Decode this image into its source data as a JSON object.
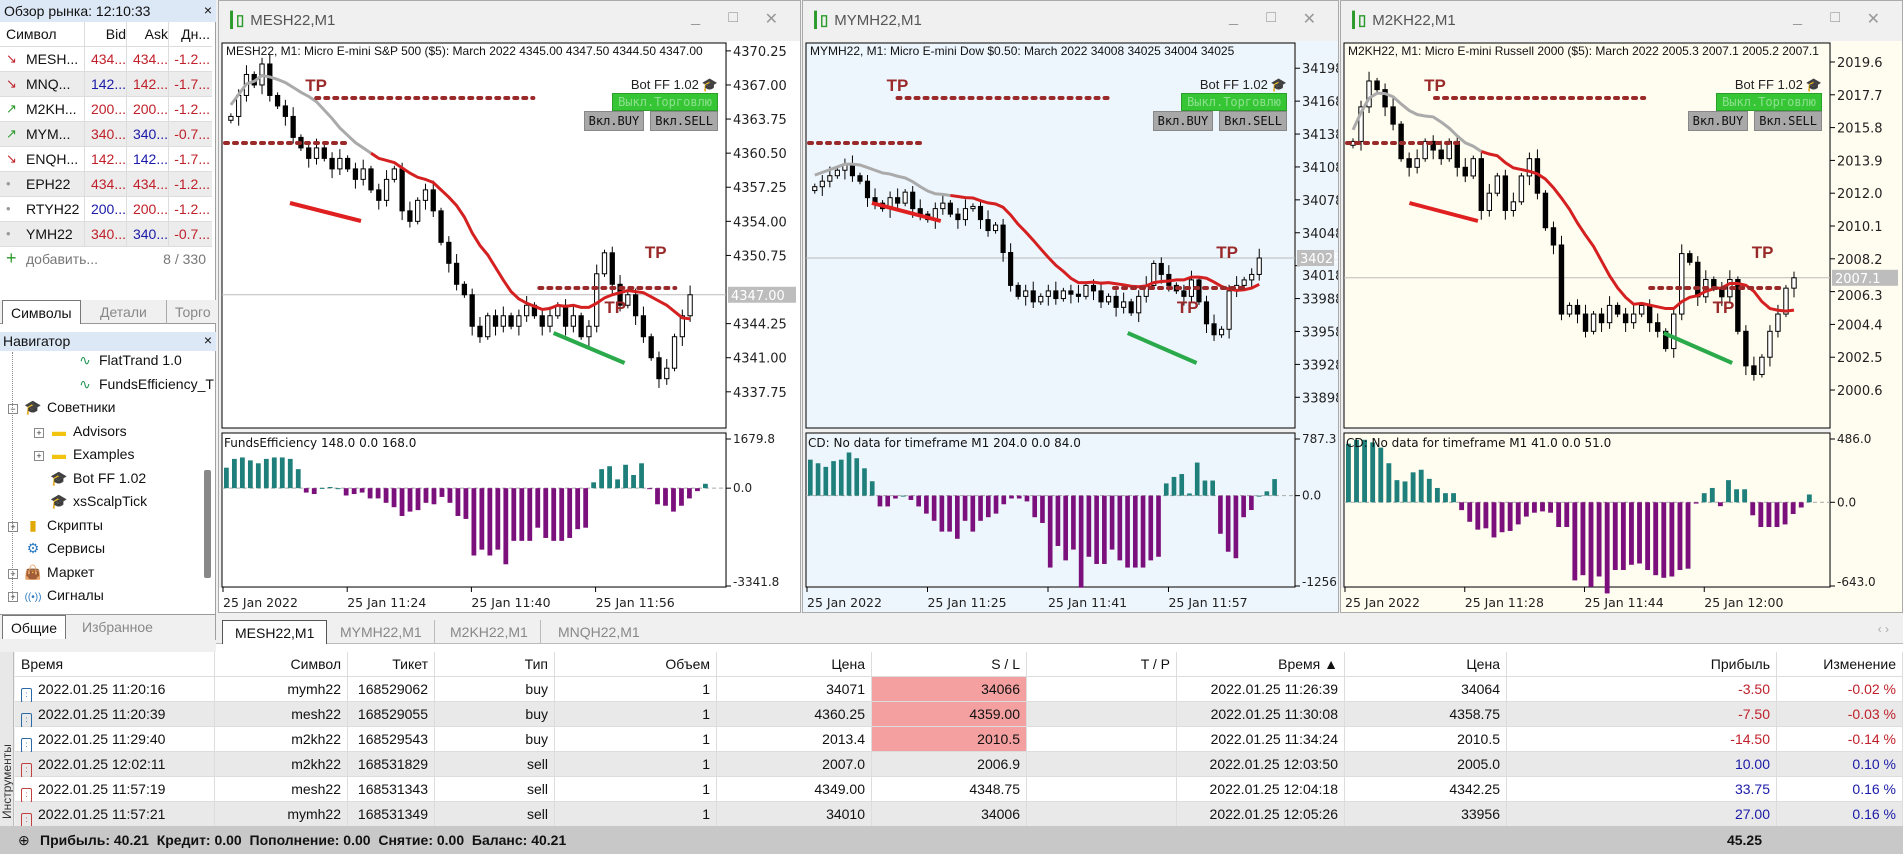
{
  "market_watch": {
    "title": "Обзор рынка: 12:10:33",
    "columns": [
      "Символ",
      "Bid",
      "Ask",
      "Дн..."
    ],
    "rows": [
      {
        "symbol": "MESH...",
        "bid": "434...",
        "ask": "434...",
        "change": "-1.2...",
        "trend": "down",
        "bid_color": "#c0202a",
        "ask_color": "#c0202a"
      },
      {
        "symbol": "MNQ...",
        "bid": "142...",
        "ask": "142...",
        "change": "-1.7...",
        "trend": "down",
        "bid_color": "#1a1aa8",
        "ask_color": "#c0202a"
      },
      {
        "symbol": "M2KH...",
        "bid": "200...",
        "ask": "200...",
        "change": "-1.2...",
        "trend": "up",
        "bid_color": "#c0202a",
        "ask_color": "#c0202a"
      },
      {
        "symbol": "MYM...",
        "bid": "340...",
        "ask": "340...",
        "change": "-0.7...",
        "trend": "up",
        "bid_color": "#c0202a",
        "ask_color": "#1a1aa8"
      },
      {
        "symbol": "ENQH...",
        "bid": "142...",
        "ask": "142...",
        "change": "-1.7...",
        "trend": "down",
        "bid_color": "#c0202a",
        "ask_color": "#1a1aa8"
      },
      {
        "symbol": "EPH22",
        "bid": "434...",
        "ask": "434...",
        "change": "-1.2...",
        "trend": "none",
        "bid_color": "#c0202a",
        "ask_color": "#c0202a"
      },
      {
        "symbol": "RTYH22",
        "bid": "200...",
        "ask": "200...",
        "change": "-1.2...",
        "trend": "none",
        "bid_color": "#1a1aa8",
        "ask_color": "#c0202a"
      },
      {
        "symbol": "YMH22",
        "bid": "340...",
        "ask": "340...",
        "change": "-0.7...",
        "trend": "none",
        "bid_color": "#c0202a",
        "ask_color": "#1a1aa8"
      }
    ],
    "add_label": "добавить...",
    "count": "8 / 330",
    "tabs": [
      "Символы",
      "Детали",
      "Торго"
    ]
  },
  "navigator": {
    "title": "Навигатор",
    "items": [
      {
        "label": "FlatTrand 1.0",
        "icon": "indicator-icon",
        "level": 3,
        "expander": ""
      },
      {
        "label": "FundsEfficiency_T",
        "icon": "indicator-icon",
        "level": 3,
        "expander": ""
      },
      {
        "label": "Советники",
        "icon": "expert-cap-icon",
        "level": 1,
        "expander": "-"
      },
      {
        "label": "Advisors",
        "icon": "folder-icon",
        "level": 2,
        "expander": "+"
      },
      {
        "label": "Examples",
        "icon": "folder-icon",
        "level": 2,
        "expander": "+"
      },
      {
        "label": "Bot FF 1.02",
        "icon": "expert-cap-icon",
        "level": 2,
        "expander": ""
      },
      {
        "label": "xsScalpTick",
        "icon": "expert-cap-icon",
        "level": 2,
        "expander": ""
      },
      {
        "label": "Скрипты",
        "icon": "script-icon",
        "level": 1,
        "expander": "+"
      },
      {
        "label": "Сервисы",
        "icon": "service-gear-icon",
        "level": 1,
        "expander": ""
      },
      {
        "label": "Маркет",
        "icon": "market-bag-icon",
        "level": 1,
        "expander": "+"
      },
      {
        "label": "Сигналы",
        "icon": "signals-icon",
        "level": 1,
        "expander": "+"
      }
    ],
    "tabs": [
      "Общие",
      "Избранное"
    ]
  },
  "bot": {
    "name": "Bot FF 1.02",
    "trade_off": "Выкл.Торговлю",
    "buy": "Вкл.BUY",
    "sell": "Вкл.SELL"
  },
  "tp_label": "TP",
  "colors": {
    "bull_hist": "#1f7f7a",
    "bear_hist": "#7b0f7b",
    "ma": "#d42020",
    "tp": "#9a2a2a",
    "buy_line": "#2aaa4a",
    "sell_line": "#e02020"
  },
  "charts": [
    {
      "window_title": "MESH22,M1",
      "header": "MESH22, M1:  Micro E-mini S&P 500 ($5): March 2022  4345.00 4347.50 4344.50 4347.00",
      "bg": "#ffffff",
      "ylim": [
        4334.3,
        4371.0
      ],
      "y_ticks": [
        "4370.25",
        "4367.00",
        "4363.75",
        "4360.50",
        "4357.25",
        "4354.00",
        "4350.75",
        "4344.25",
        "4341.00",
        "4337.75"
      ],
      "current_price": "4347.00",
      "closes": [
        4364,
        4366,
        4368,
        4367,
        4369,
        4366,
        4365,
        4364,
        4362,
        4361,
        4360,
        4361,
        4360,
        4359,
        4360,
        4359,
        4358,
        4359,
        4357,
        4356,
        4358,
        4359,
        4355,
        4354,
        4356,
        4357,
        4355,
        4352,
        4350,
        4348,
        4347,
        4344,
        4343,
        4345,
        4344,
        4345,
        4344,
        4345,
        4346,
        4345,
        4344,
        4345,
        4346,
        4344,
        4345,
        4343,
        4344,
        4349,
        4351,
        4348,
        4346,
        4347,
        4345,
        4343,
        4341,
        4339,
        4340,
        4343,
        4345,
        4347
      ],
      "indicator": {
        "label": "FundsEfficiency 148.0 0.0 168.0",
        "ylim": [
          -3341.8,
          1679.8
        ],
        "max_label": "1679.8",
        "zero_label": "0.0",
        "min_label": "-3341.8",
        "values": [
          700,
          1000,
          1050,
          950,
          850,
          1000,
          1050,
          1050,
          1000,
          650,
          -150,
          -200,
          10,
          40,
          0,
          -250,
          -200,
          -150,
          -350,
          -350,
          -500,
          -650,
          -950,
          -800,
          -750,
          -500,
          -550,
          -300,
          -500,
          -950,
          -1050,
          -2300,
          -2100,
          -2300,
          -2100,
          -2600,
          -1800,
          -1800,
          -1800,
          -1350,
          -1700,
          -1800,
          -1800,
          -1700,
          -1400,
          -1350,
          200,
          650,
          750,
          300,
          800,
          450,
          850,
          -20,
          -550,
          -600,
          -800,
          -600,
          -350,
          -100,
          150
        ]
      },
      "time_labels": [
        "25 Jan 2022",
        "25 Jan 11:24",
        "25 Jan 11:40",
        "25 Jan 11:56"
      ]
    },
    {
      "window_title": "MYMH22,M1",
      "header": "MYMH22, M1:  Micro E-mini Dow $0.50: March 2022  34008 34025 34004 34025",
      "bg": "#eef6fd",
      "ylim": [
        33870,
        34221
      ],
      "y_ticks": [
        "34198",
        "34168",
        "34138",
        "34108",
        "34078",
        "34048",
        "34018",
        "33988",
        "33958",
        "33928",
        "33898"
      ],
      "current_price": "34025",
      "closes": [
        34090,
        34095,
        34100,
        34105,
        34110,
        34100,
        34095,
        34080,
        34075,
        34070,
        34080,
        34075,
        34085,
        34070,
        34065,
        34060,
        34070,
        34075,
        34065,
        34060,
        34070,
        34072,
        34060,
        34050,
        34055,
        34030,
        34000,
        33990,
        33995,
        33985,
        33990,
        33995,
        33988,
        33995,
        33992,
        33990,
        34000,
        33995,
        33985,
        33990,
        33980,
        33985,
        33975,
        33990,
        34000,
        34020,
        34010,
        34000,
        33995,
        33990,
        34005,
        33985,
        33965,
        33955,
        33960,
        33995,
        34000,
        34005,
        34010,
        34025
      ],
      "indicator": {
        "label": "CD: No data for timeframe M1 204.0 0.0 84.0",
        "ylim": [
          -1256.3,
          787.3
        ],
        "max_label": "787.3",
        "zero_label": "0.0",
        "min_label": "-1256.3",
        "values": [
          500,
          450,
          400,
          480,
          500,
          600,
          520,
          380,
          200,
          -150,
          -150,
          -40,
          0,
          -60,
          -150,
          -250,
          -350,
          -500,
          -500,
          -600,
          -350,
          -500,
          -350,
          -300,
          -250,
          -120,
          -40,
          -40,
          -80,
          -300,
          -380,
          -1000,
          -700,
          -900,
          -750,
          -1280,
          -850,
          -950,
          -950,
          -750,
          -900,
          -1000,
          -1000,
          -1000,
          -900,
          -850,
          170,
          260,
          300,
          30,
          460,
          210,
          210,
          -530,
          -780,
          -870,
          -300,
          -200,
          0,
          60,
          230
        ]
      },
      "time_labels": [
        "25 Jan 2022",
        "25 Jan 11:25",
        "25 Jan 11:41",
        "25 Jan 11:57"
      ]
    },
    {
      "window_title": "M2KH22,M1",
      "header": "M2KH22, M1:  Micro E-mini Russell 2000 ($5): March 2022  2005.3 2007.1 2005.2 2007.1",
      "bg": "#fffdf0",
      "ylim": [
        1998.4,
        2020.7
      ],
      "y_ticks": [
        "2019.6",
        "2017.7",
        "2015.8",
        "2013.9",
        "2012.0",
        "2010.1",
        "2008.2",
        "2006.3",
        "2004.4",
        "2002.5",
        "2000.6"
      ],
      "current_price": "2007.1",
      "closes": [
        2015,
        2017,
        2018.5,
        2018,
        2017,
        2016,
        2014,
        2013.5,
        2014,
        2015,
        2014.5,
        2014,
        2015,
        2013.5,
        2013,
        2014,
        2011,
        2012,
        2013,
        2011,
        2011.5,
        2013,
        2014,
        2012,
        2010,
        2009,
        2005,
        2005.5,
        2005,
        2004,
        2005,
        2004.5,
        2005.5,
        2005,
        2004.5,
        2005,
        2005.5,
        2004.5,
        2004,
        2003,
        2005,
        2008.5,
        2008,
        2006,
        2007,
        2006.5,
        2006,
        2007,
        2004,
        2002,
        2001.5,
        2002.5,
        2004,
        2005,
        2006.5,
        2007.1
      ],
      "indicator": {
        "label": "CD: No data for timeframe M1 41.0 0.0 51.0",
        "ylim": [
          -643.0,
          486.0
        ],
        "max_label": "486.0",
        "zero_label": "0.0",
        "min_label": "-643.0",
        "values": [
          450,
          480,
          480,
          460,
          420,
          300,
          170,
          160,
          230,
          250,
          180,
          110,
          70,
          70,
          -60,
          -150,
          -210,
          -200,
          -270,
          -230,
          -220,
          -170,
          -110,
          -80,
          -70,
          -80,
          -190,
          -190,
          -600,
          -560,
          -650,
          -570,
          -700,
          -520,
          -520,
          -480,
          -470,
          -520,
          -560,
          -580,
          -570,
          -520,
          -510,
          -10,
          70,
          110,
          -30,
          170,
          100,
          100,
          -100,
          -190,
          -190,
          -190,
          -170,
          -90,
          -40,
          60
        ]
      },
      "time_labels": [
        "25 Jan 2022",
        "25 Jan 11:28",
        "25 Jan 11:44",
        "25 Jan 12:00"
      ]
    }
  ],
  "terminal": {
    "tabs": [
      "MESH22,M1",
      "MYMH22,M1",
      "M2KH22,M1",
      "MNQH22,M1"
    ],
    "side_label": "Инструменты",
    "columns": [
      "Время",
      "Символ",
      "Тикет",
      "Тип",
      "Объем",
      "Цена",
      "S / L",
      "T / P",
      "Время ▲",
      "Цена",
      "Прибыль",
      "Изменение"
    ],
    "rows": [
      {
        "cells": [
          "2022.01.25 11:20:16",
          "mymh22",
          "168529062",
          "buy",
          "1",
          "34071",
          "34066",
          "",
          "2022.01.25 11:26:39",
          "34064",
          "-3.50",
          "-0.02 %"
        ],
        "side": "buy",
        "sl_hit": true,
        "profit_color": "#c0202a"
      },
      {
        "cells": [
          "2022.01.25 11:20:39",
          "mesh22",
          "168529055",
          "buy",
          "1",
          "4360.25",
          "4359.00",
          "",
          "2022.01.25 11:30:08",
          "4358.75",
          "-7.50",
          "-0.03 %"
        ],
        "side": "buy",
        "sl_hit": true,
        "profit_color": "#c0202a"
      },
      {
        "cells": [
          "2022.01.25 11:29:40",
          "m2kh22",
          "168529543",
          "buy",
          "1",
          "2013.4",
          "2010.5",
          "",
          "2022.01.25 11:34:24",
          "2010.5",
          "-14.50",
          "-0.14 %"
        ],
        "side": "buy",
        "sl_hit": true,
        "profit_color": "#c0202a"
      },
      {
        "cells": [
          "2022.01.25 12:02:11",
          "m2kh22",
          "168531829",
          "sell",
          "1",
          "2007.0",
          "2006.9",
          "",
          "2022.01.25 12:03:50",
          "2005.0",
          "10.00",
          "0.10 %"
        ],
        "side": "sell",
        "sl_hit": false,
        "profit_color": "#1a1aa8"
      },
      {
        "cells": [
          "2022.01.25 11:57:19",
          "mesh22",
          "168531343",
          "sell",
          "1",
          "4349.00",
          "4348.75",
          "",
          "2022.01.25 12:04:18",
          "4342.25",
          "33.75",
          "0.16 %"
        ],
        "side": "sell",
        "sl_hit": false,
        "profit_color": "#1a1aa8"
      },
      {
        "cells": [
          "2022.01.25 11:57:21",
          "mymh22",
          "168531349",
          "sell",
          "1",
          "34010",
          "34006",
          "",
          "2022.01.25 12:05:26",
          "33956",
          "27.00",
          "0.16 %"
        ],
        "side": "sell",
        "sl_hit": false,
        "profit_color": "#1a1aa8"
      }
    ],
    "footer": {
      "summary": "Прибыль: 40.21  Кредит: 0.00  Пополнение: 0.00  Снятие: 0.00  Баланс: 40.21",
      "total": "45.25"
    }
  }
}
